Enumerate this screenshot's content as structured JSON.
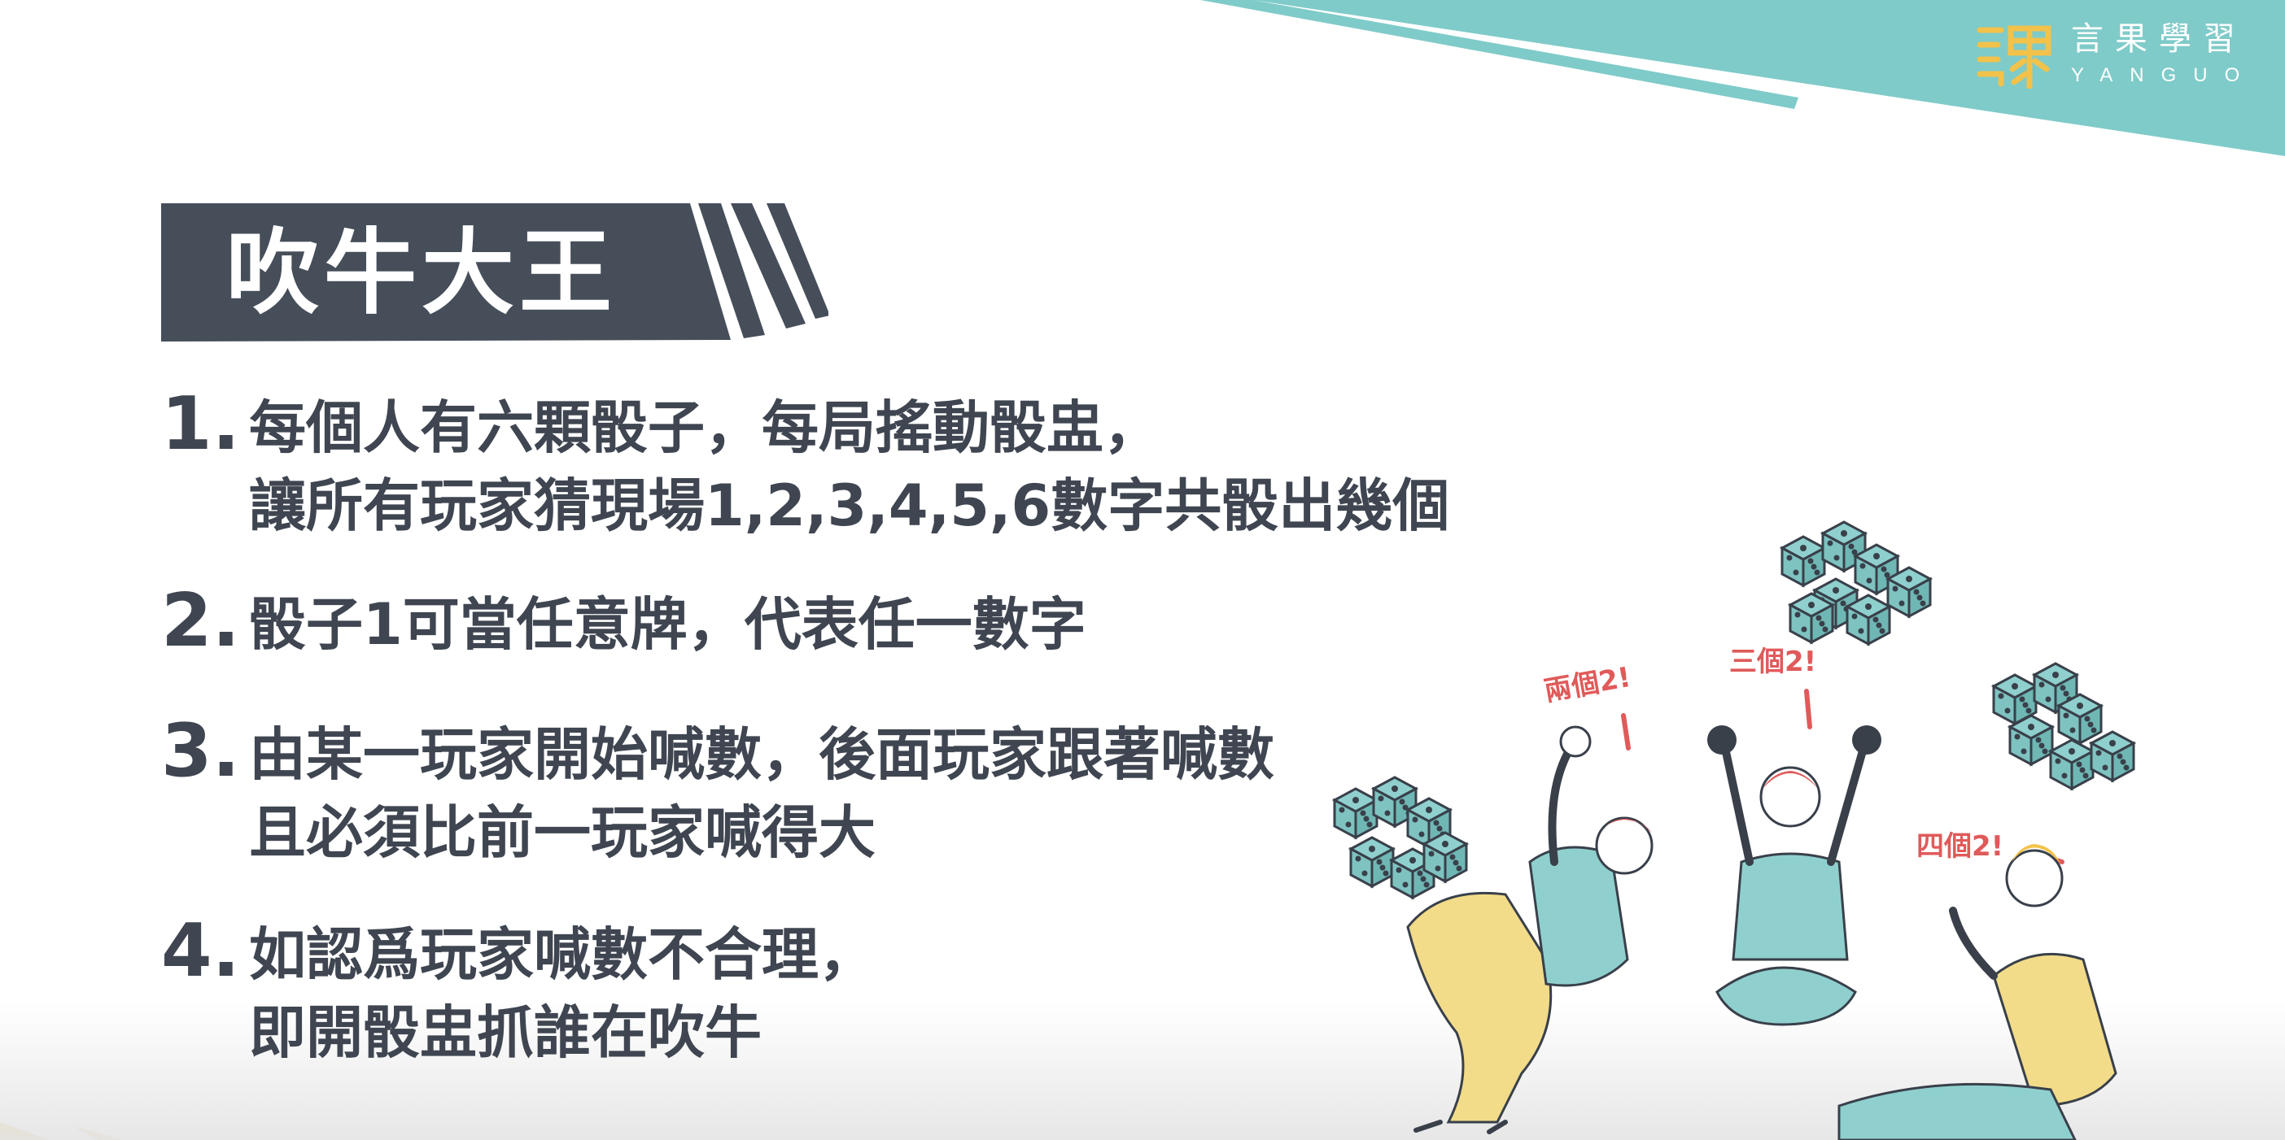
{
  "logo": {
    "name_cn": "言果學習",
    "name_en": "YANGUO"
  },
  "title": "吹牛大王",
  "rules": [
    {
      "number": "1.",
      "lines": [
        "每個人有六顆骰子，每局搖動骰盅，",
        "讓所有玩家猜現場1,2,3,4,5,6數字共骰出幾個"
      ]
    },
    {
      "number": "2.",
      "lines": [
        "骰子1可當任意牌，代表任一數字"
      ]
    },
    {
      "number": "3.",
      "lines": [
        "由某一玩家開始喊數，後面玩家跟著喊數",
        "且必須比前一玩家喊得大"
      ]
    },
    {
      "number": "4.",
      "lines": [
        "如認爲玩家喊數不合理，",
        "即開骰盅抓誰在吹牛"
      ]
    }
  ],
  "illustration": {
    "callouts": [
      "兩個2!",
      "三個2!",
      "四個2!"
    ]
  },
  "colors": {
    "teal": "#7fcbc9",
    "dark_slate": "#464e5a",
    "gold": "#f2c24a",
    "text": "#3f4651",
    "callout_red": "#e05a5a"
  }
}
